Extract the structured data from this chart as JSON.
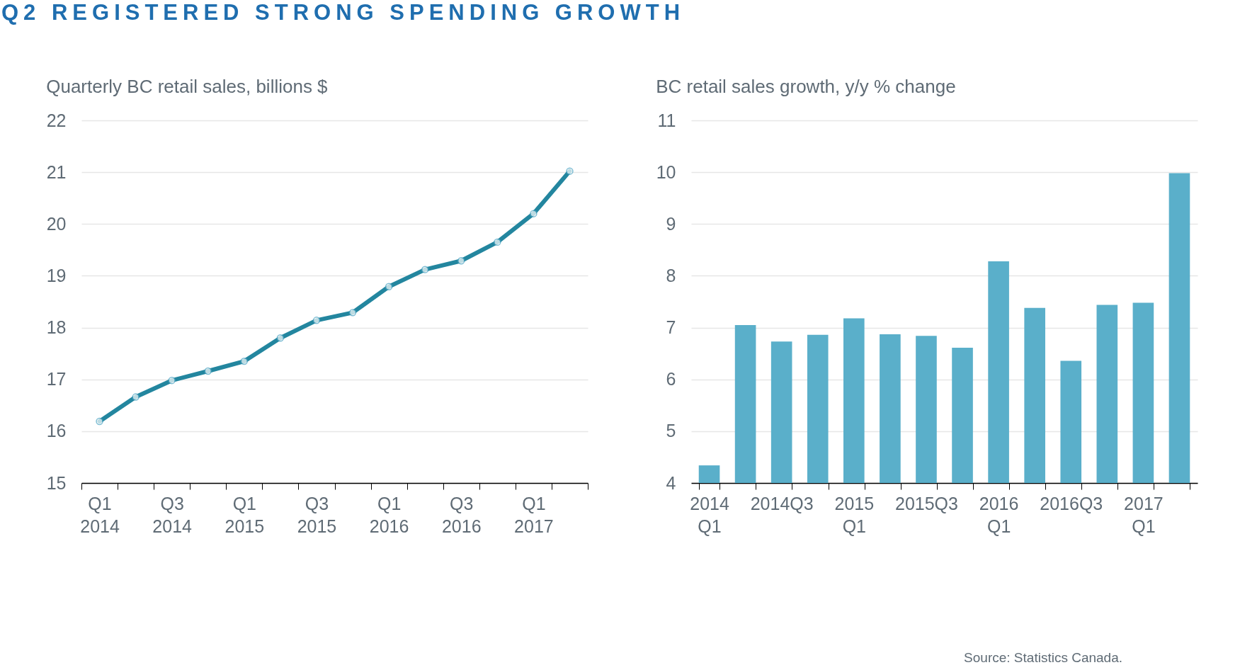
{
  "chart_data": [
    {
      "type": "line",
      "title": "Quarterly BC retail sales, billions $",
      "annotations": [
        "Q2 REGISTERED STRONG SPENDING GROWTH"
      ],
      "categories": [
        "Q1\n2014",
        null,
        "Q3\n2014",
        null,
        "Q1\n2015",
        null,
        "Q3\n2015",
        null,
        "Q1\n2016",
        null,
        "Q3\n2016",
        null,
        "Q1\n2017",
        null
      ],
      "series": [
        {
          "color": "#23869f",
          "values": [
            16.19,
            16.66,
            16.98,
            17.16,
            17.35,
            17.8,
            18.14,
            18.29,
            18.79,
            19.12,
            19.29,
            19.65,
            20.2,
            21.02
          ]
        }
      ],
      "ylim": [
        15,
        22
      ],
      "yticks": [
        15,
        16,
        17,
        18,
        19,
        20,
        21,
        22
      ],
      "grid": "y",
      "marker": "circle",
      "line_style": "solid"
    },
    {
      "type": "bar",
      "title": "BC retail sales growth, y/y % change",
      "annotations": [
        "Source: Statistics Canada."
      ],
      "categories": [
        "2014\nQ1",
        null,
        "2014Q3",
        null,
        "2015\nQ1",
        null,
        "2015Q3",
        null,
        "2016\nQ1",
        null,
        "2016Q3",
        null,
        "2017\nQ1",
        null
      ],
      "series": [
        {
          "color": "#5aafca",
          "values": [
            4.34,
            7.05,
            6.73,
            6.86,
            7.18,
            6.87,
            6.84,
            6.61,
            8.28,
            7.38,
            6.36,
            7.44,
            7.48,
            9.98
          ]
        }
      ],
      "ylim": [
        4,
        11
      ],
      "yticks": [
        4,
        5,
        6,
        7,
        8,
        9,
        10,
        11
      ],
      "grid": "y"
    }
  ]
}
